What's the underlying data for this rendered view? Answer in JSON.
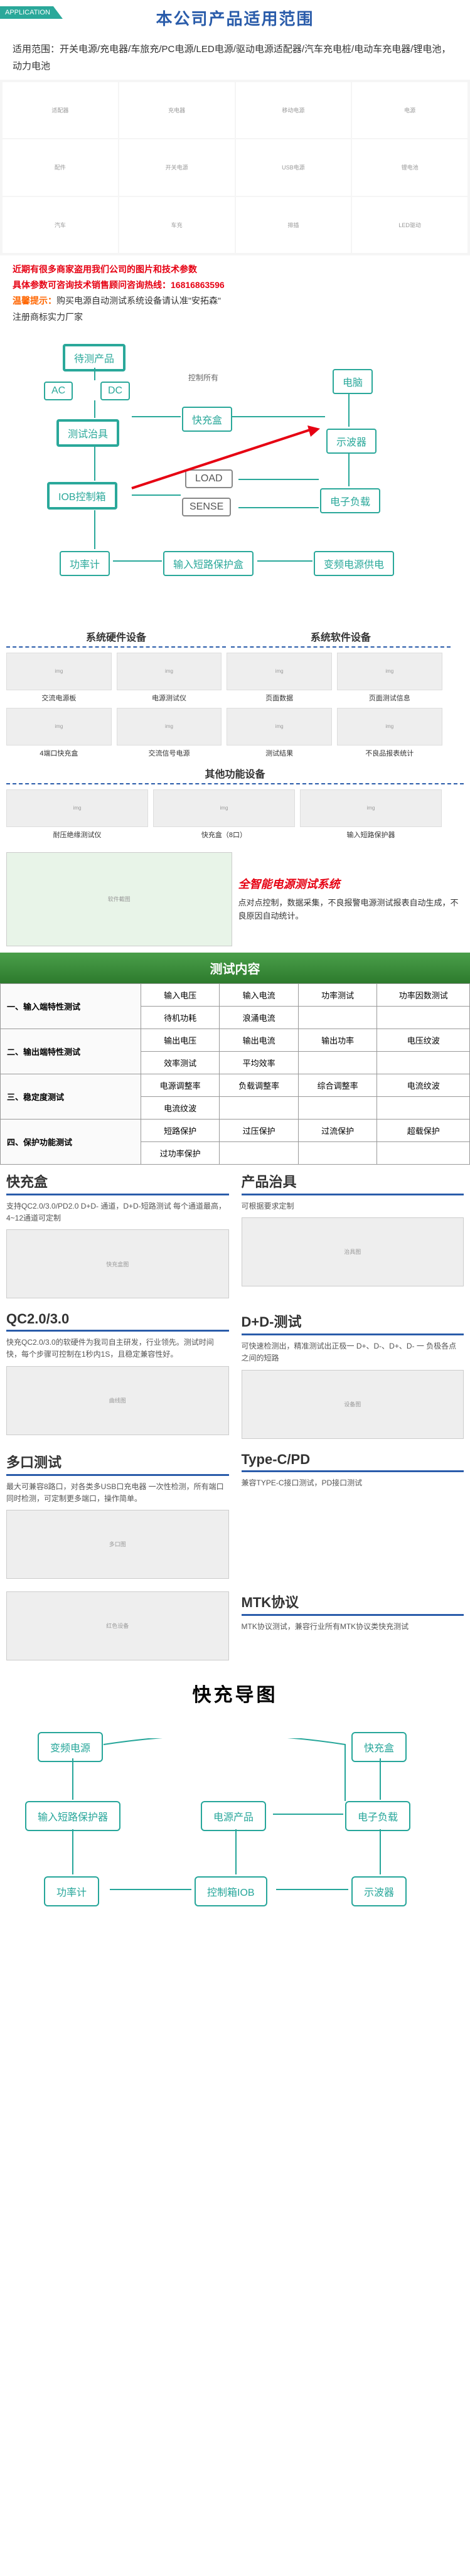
{
  "header": {
    "appTab": "APPLICATION",
    "title": "本公司产品适用范围",
    "scope": "适用范围：开关电源/充电器/车旅充/PC电源/LED电源/驱动电源适配器/汽车充电桩/电动车充电器/锂电池，动力电池"
  },
  "warnings": {
    "line1": "近期有很多商家盗用我们公司的图片和技术参数",
    "line2a": "具体参数可咨询技术销售顾问咨询热线：",
    "line2b": "16816863596",
    "line3a": "温馨提示：",
    "line3b": "购买电源自动测试系统设备请认准\"安拓森\"",
    "line4": "注册商标实力厂家"
  },
  "flow1": {
    "prod": "待测产品",
    "ac": "AC",
    "dc": "DC",
    "fixture": "测试治具",
    "iob": "IOB控制箱",
    "power": "功率计",
    "fcbox": "快充盒",
    "load": "LOAD",
    "sense": "SENSE",
    "shortbox": "输入短路保护盒",
    "pc": "电脑",
    "scope": "示波器",
    "eload": "电子负载",
    "varpwr": "变频电源供电",
    "ctrl": "控制所有"
  },
  "equip": {
    "hw": "系统硬件设备",
    "sw": "系统软件设备",
    "other": "其他功能设备",
    "items": [
      "交流电源板",
      "电源测试仪",
      "4端口快充盒",
      "交流信号电源",
      "页面数据",
      "页面测试信息",
      "测试结果",
      "不良品报表统计",
      "耐压绝缘测试仪",
      "快充盒（8口）",
      "输入短路保护器"
    ]
  },
  "smart": {
    "title": "全智能电源测试系统",
    "desc": "点对点控制，数据采集，不良报警电源测试报表自动生成，不良原因自动统计。"
  },
  "testTable": {
    "header": "测试内容",
    "rows": [
      {
        "h": "一、输入端特性测试",
        "cells": [
          "输入电压",
          "输入电流",
          "功率测试",
          "功率因数测试"
        ]
      },
      {
        "h": "",
        "cells": [
          "待机功耗",
          "浪涌电流",
          "",
          ""
        ]
      },
      {
        "h": "二、输出端特性测试",
        "cells": [
          "输出电压",
          "输出电流",
          "输出功率",
          "电压纹波"
        ]
      },
      {
        "h": "",
        "cells": [
          "效率测试",
          "平均效率",
          "",
          ""
        ]
      },
      {
        "h": "三、稳定度测试",
        "cells": [
          "电源调整率",
          "负载调整率",
          "综合调整率",
          "电流纹波"
        ]
      },
      {
        "h": "",
        "cells": [
          "电流纹波",
          "",
          "",
          ""
        ]
      },
      {
        "h": "四、保护功能测试",
        "cells": [
          "短路保护",
          "过压保护",
          "过流保护",
          "超载保护"
        ]
      },
      {
        "h": "",
        "cells": [
          "过功率保护",
          "",
          "",
          ""
        ]
      }
    ]
  },
  "sections": [
    {
      "t": "快充盒",
      "d": "支持QC2.0/3.0/PD2.0\nD+D- 通道，D+D-短路测试\n每个通道最高，4~12通道可定制",
      "img": "快充盒图"
    },
    {
      "t": "产品治具",
      "d": "可根据要求定制",
      "img": "治具图"
    },
    {
      "t": "QC2.0/3.0",
      "d": "快充QC2.0/3.0的软硬件为我司自主研发，行业领先。测试时间快，每个步骤可控制在1秒内1S，且稳定兼容性好。",
      "img": "曲线图"
    },
    {
      "t": "D+D-测试",
      "d": "可快速检测出，精准测试出正极一 D+、D-、D+、D- 一 负极各点之间的短路",
      "img": "设备图"
    },
    {
      "t": "多口测试",
      "d": "最大可兼容8路口，对各类多USB口充电器 一次性检测，所有端口 同时检测，可定制更多端口，操作简单。",
      "img": "多口图"
    },
    {
      "t": "Type-C/PD",
      "d": "兼容TYPE-C接口测试，PD接口测试",
      "img": ""
    },
    {
      "t": "",
      "d": "",
      "img": "红色设备"
    },
    {
      "t": "MTK协议",
      "d": "MTK协议测试，兼容行业所有MTK协议类快充测试",
      "img": ""
    }
  ],
  "flow2": {
    "title": "快充导图",
    "varpwr": "变频电源",
    "shortp": "输入短路保护器",
    "pwrm": "功率计",
    "prod": "电源产品",
    "iob": "控制箱IOB",
    "fcbox": "快充盒",
    "eload": "电子负载",
    "scope": "示波器"
  },
  "colors": {
    "teal": "#2aa89a",
    "blue": "#2a5caa",
    "red": "#e60012",
    "green1": "#4a9f4a",
    "green2": "#2d7a2d"
  }
}
